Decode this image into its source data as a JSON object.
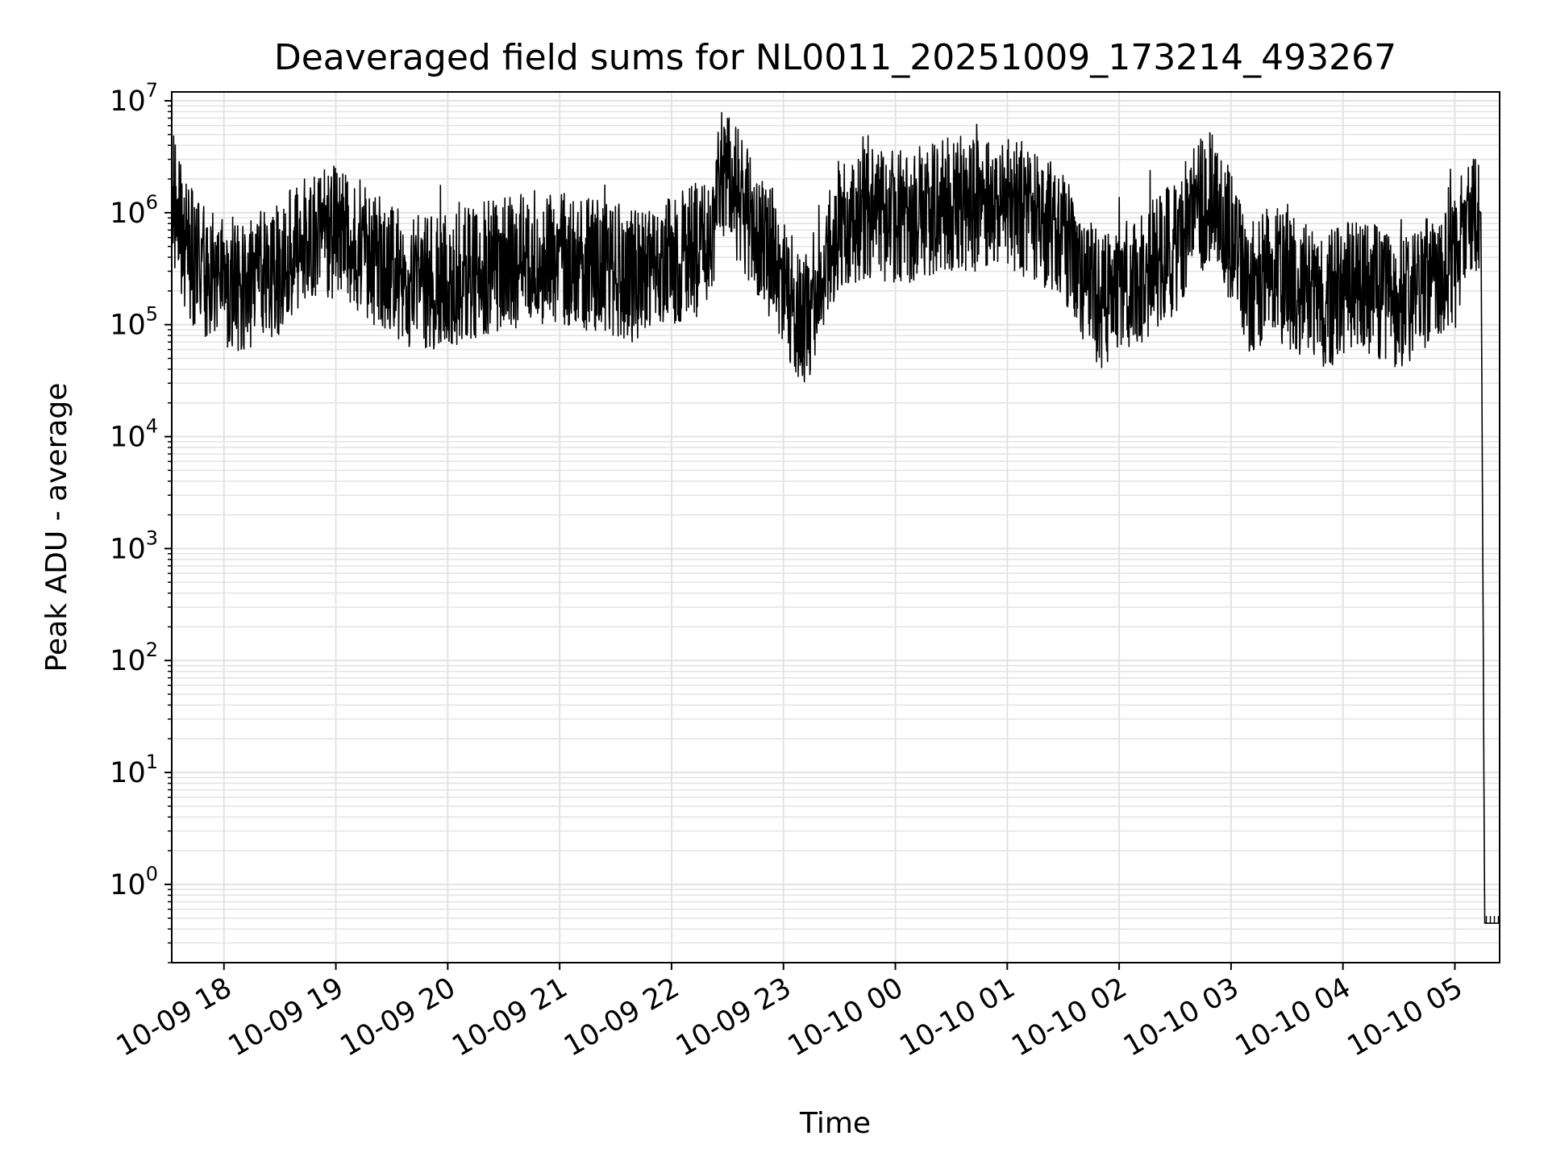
{
  "chart_data": {
    "type": "line",
    "title": "Deaveraged field sums for NL0011_20251009_173214_493267",
    "xlabel": "Time",
    "ylabel": "Peak ADU - average",
    "yscale": "log",
    "ylim": [
      0.2,
      12000000
    ],
    "xlim": [
      "2025-10-09 17:32",
      "2025-10-10 05:24"
    ],
    "grid": true,
    "grid_minor": true,
    "line_color": "#000000",
    "grid_color": "#e3e3e3",
    "x_ticks": [
      {
        "value": "2025-10-09 18:00",
        "label": "10-09 18"
      },
      {
        "value": "2025-10-09 19:00",
        "label": "10-09 19"
      },
      {
        "value": "2025-10-09 20:00",
        "label": "10-09 20"
      },
      {
        "value": "2025-10-09 21:00",
        "label": "10-09 21"
      },
      {
        "value": "2025-10-09 22:00",
        "label": "10-09 22"
      },
      {
        "value": "2025-10-09 23:00",
        "label": "10-09 23"
      },
      {
        "value": "2025-10-10 00:00",
        "label": "10-10 00"
      },
      {
        "value": "2025-10-10 01:00",
        "label": "10-10 01"
      },
      {
        "value": "2025-10-10 02:00",
        "label": "10-10 02"
      },
      {
        "value": "2025-10-10 03:00",
        "label": "10-10 03"
      },
      {
        "value": "2025-10-10 04:00",
        "label": "10-10 04"
      },
      {
        "value": "2025-10-10 05:00",
        "label": "10-10 05"
      }
    ],
    "y_ticks": [
      {
        "value": 1,
        "base": "10",
        "exp": "0"
      },
      {
        "value": 10,
        "base": "10",
        "exp": "1"
      },
      {
        "value": 100,
        "base": "10",
        "exp": "2"
      },
      {
        "value": 1000,
        "base": "10",
        "exp": "3"
      },
      {
        "value": 10000,
        "base": "10",
        "exp": "4"
      },
      {
        "value": 100000,
        "base": "10",
        "exp": "5"
      },
      {
        "value": 1000000,
        "base": "10",
        "exp": "6"
      },
      {
        "value": 10000000,
        "base": "10",
        "exp": "7"
      }
    ],
    "series": [
      {
        "x": [
          "2025-10-09 17:32",
          "2025-10-09 17:36",
          "2025-10-09 17:40",
          "2025-10-09 17:45",
          "2025-10-09 17:50",
          "2025-10-09 17:55",
          "2025-10-09 18:00",
          "2025-10-09 18:10",
          "2025-10-09 18:20",
          "2025-10-09 18:30",
          "2025-10-09 18:40",
          "2025-10-09 18:50",
          "2025-10-09 19:00",
          "2025-10-09 19:10",
          "2025-10-09 19:20",
          "2025-10-09 19:30",
          "2025-10-09 19:40",
          "2025-10-09 19:50",
          "2025-10-09 20:00",
          "2025-10-09 20:15",
          "2025-10-09 20:30",
          "2025-10-09 20:45",
          "2025-10-09 21:00",
          "2025-10-09 21:15",
          "2025-10-09 21:30",
          "2025-10-09 21:45",
          "2025-10-09 22:00",
          "2025-10-09 22:10",
          "2025-10-09 22:20",
          "2025-10-09 22:28",
          "2025-10-09 22:35",
          "2025-10-09 22:45",
          "2025-10-09 22:55",
          "2025-10-09 23:05",
          "2025-10-09 23:12",
          "2025-10-09 23:20",
          "2025-10-09 23:30",
          "2025-10-09 23:45",
          "2025-10-10 00:00",
          "2025-10-10 00:15",
          "2025-10-10 00:30",
          "2025-10-10 00:45",
          "2025-10-10 01:00",
          "2025-10-10 01:15",
          "2025-10-10 01:30",
          "2025-10-10 01:40",
          "2025-10-10 01:50",
          "2025-10-10 02:00",
          "2025-10-10 02:15",
          "2025-10-10 02:30",
          "2025-10-10 02:40",
          "2025-10-10 02:50",
          "2025-10-10 03:00",
          "2025-10-10 03:10",
          "2025-10-10 03:20",
          "2025-10-10 03:30",
          "2025-10-10 03:40",
          "2025-10-10 03:50",
          "2025-10-10 04:00",
          "2025-10-10 04:10",
          "2025-10-10 04:20",
          "2025-10-10 04:30",
          "2025-10-10 04:40",
          "2025-10-10 04:50",
          "2025-10-10 05:00",
          "2025-10-10 05:05",
          "2025-10-10 05:10",
          "2025-10-10 05:14",
          "2025-10-10 05:16",
          "2025-10-10 05:24"
        ],
        "values": [
          1500000,
          800000,
          500000,
          350000,
          300000,
          280000,
          250000,
          220000,
          260000,
          320000,
          500000,
          600000,
          700000,
          550000,
          400000,
          300000,
          250000,
          230000,
          250000,
          300000,
          350000,
          400000,
          380000,
          350000,
          300000,
          250000,
          350000,
          450000,
          500000,
          2500000,
          1500000,
          700000,
          400000,
          150000,
          100000,
          300000,
          800000,
          1000000,
          900000,
          1000000,
          1200000,
          1100000,
          1200000,
          900000,
          600000,
          300000,
          150000,
          200000,
          300000,
          500000,
          1000000,
          1500000,
          600000,
          200000,
          300000,
          250000,
          200000,
          150000,
          200000,
          250000,
          180000,
          150000,
          200000,
          300000,
          350000,
          800000,
          1150000,
          1000000,
          0.45,
          0.45
        ],
        "noise": 0.6
      }
    ]
  }
}
